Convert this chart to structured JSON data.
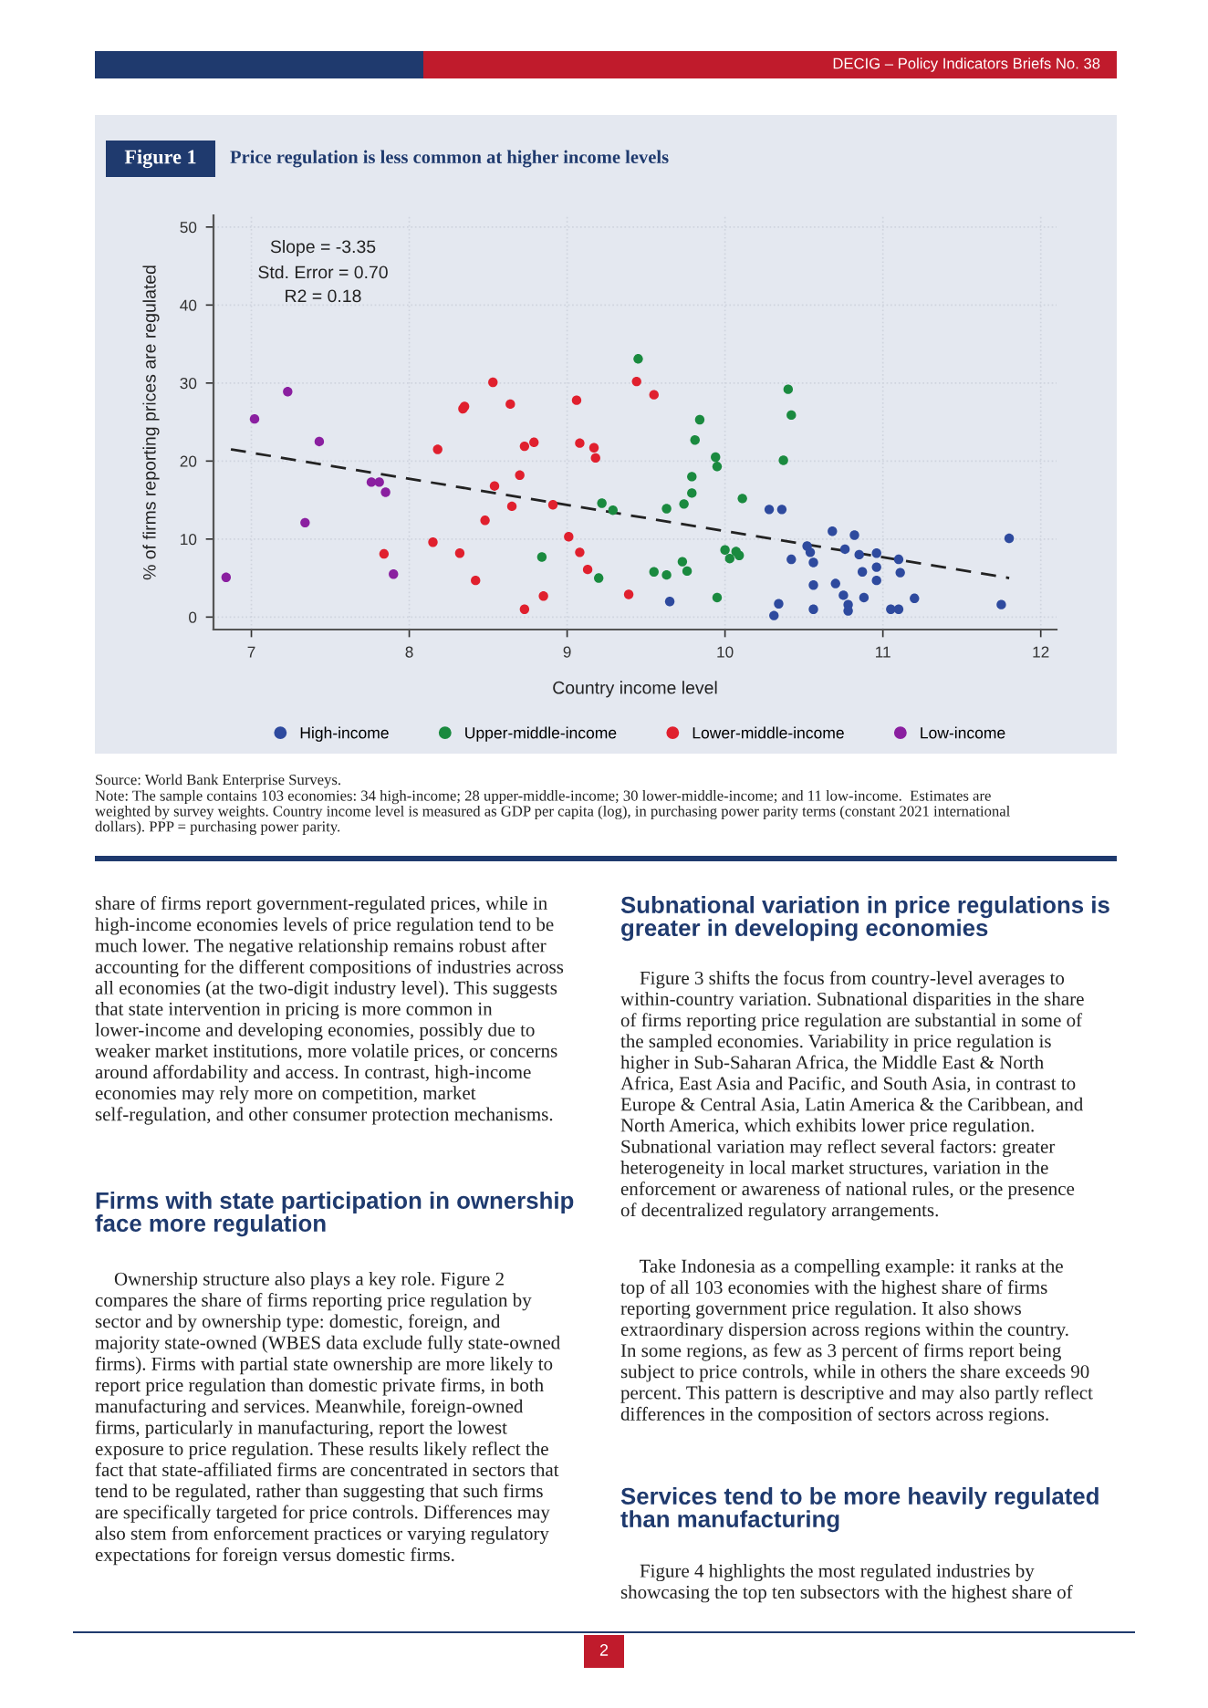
{
  "chart_data": {
    "type": "scatter",
    "title": "Price regulation is less common at higher income levels",
    "xlabel": "Country income level",
    "ylabel": "% of firms reporting prices are regulated",
    "xlim": [
      6.76,
      12.1
    ],
    "xticks": [
      7,
      8,
      9,
      10,
      11,
      12
    ],
    "ylim": [
      -1.6,
      51.5
    ],
    "yticks": [
      0,
      10,
      20,
      30,
      40,
      50
    ],
    "grid": true,
    "legend": "bottom",
    "marker": "circle",
    "series": [
      {
        "name": "High-income",
        "color": "#2e4a9e",
        "x": [
          9.65,
          10.28,
          10.36,
          10.31,
          10.34,
          10.42,
          10.52,
          10.54,
          10.56,
          10.56,
          10.56,
          10.68,
          10.7,
          10.75,
          10.76,
          10.78,
          10.78,
          10.82,
          10.85,
          10.87,
          10.88,
          10.96,
          10.96,
          10.96,
          11.05,
          11.1,
          11.1,
          11.11,
          11.2,
          11.75,
          11.8
        ],
        "values": [
          2.0,
          13.8,
          13.8,
          0.2,
          1.7,
          7.4,
          9.1,
          8.3,
          7.0,
          4.1,
          1.0,
          11.0,
          4.3,
          2.8,
          8.7,
          1.6,
          0.8,
          10.5,
          8.0,
          5.8,
          2.5,
          8.2,
          6.4,
          4.7,
          1.0,
          1.0,
          7.4,
          5.7,
          2.4,
          1.6,
          10.1
        ]
      },
      {
        "name": "Upper-middle-income",
        "color": "#1a8a3f",
        "x": [
          8.84,
          9.2,
          9.22,
          9.29,
          9.45,
          9.55,
          9.63,
          9.63,
          9.73,
          9.74,
          9.76,
          9.79,
          9.79,
          9.81,
          9.84,
          9.94,
          9.95,
          9.95,
          10.0,
          10.03,
          10.07,
          10.09,
          10.11,
          10.37,
          10.4,
          10.42
        ],
        "values": [
          7.7,
          5.0,
          14.6,
          13.7,
          33.1,
          5.8,
          5.4,
          13.9,
          7.1,
          14.5,
          5.9,
          15.9,
          18.0,
          22.7,
          25.3,
          20.5,
          19.3,
          2.5,
          8.6,
          7.5,
          8.4,
          7.9,
          15.2,
          20.1,
          29.2,
          25.9
        ]
      },
      {
        "name": "Lower-middle-income",
        "color": "#e0202e",
        "x": [
          7.84,
          8.15,
          8.18,
          8.32,
          8.34,
          8.35,
          8.42,
          8.48,
          8.53,
          8.54,
          8.64,
          8.65,
          8.7,
          8.73,
          8.73,
          8.79,
          8.85,
          8.91,
          9.01,
          9.06,
          9.08,
          9.08,
          9.13,
          9.17,
          9.18,
          9.39,
          9.44,
          9.55
        ],
        "values": [
          8.1,
          9.6,
          21.5,
          8.2,
          26.7,
          27.0,
          4.7,
          12.4,
          30.1,
          16.8,
          27.3,
          14.2,
          18.2,
          21.9,
          1.0,
          22.4,
          2.7,
          14.4,
          10.3,
          27.8,
          22.3,
          8.3,
          6.1,
          21.7,
          20.4,
          2.9,
          30.2,
          28.5
        ]
      },
      {
        "name": "Low-income",
        "color": "#8a1fa0",
        "x": [
          6.84,
          7.02,
          7.23,
          7.34,
          7.43,
          7.76,
          7.81,
          7.85,
          7.9
        ],
        "values": [
          5.1,
          25.4,
          28.9,
          12.1,
          22.5,
          17.3,
          17.3,
          16.0,
          5.5
        ]
      },
      {
        "type": "line",
        "color": "#222222",
        "line_style": "dashed",
        "marker": "none",
        "x": [
          6.87,
          11.8
        ],
        "values": [
          21.5,
          5.0
        ]
      }
    ],
    "annotations": [
      "DECIG – Policy Indicators Briefs No. 38",
      "Figure 1",
      "Slope = -3.35",
      "Std. Error = 0.70",
      "R2 = 0.18",
      "Source: World Bank Enterprise Surveys.",
      "Note: The sample contains 103 economies: 34 high-income; 28 upper-middle-income; 30 lower-middle-income; and 11 low-income.  Estimates are\nweighted by survey weights. Country income level is measured as GDP per capita (log), in purchasing power parity terms (constant 2021 international\ndollars). PPP = purchasing power parity.",
      "share of firms report government-regulated prices, while in\nhigh-income economies levels of price regulation tend to be\nmuch lower. The negative relationship remains robust after\naccounting for the different compositions of industries across\nall economies (at the two-digit industry level). This suggests\nthat state intervention in pricing is more common in\nlower-income and developing economies, possibly due to\nweaker market institutions, more volatile prices, or concerns\naround affordability and access. In contrast, high-income\neconomies may rely more on competition, market\nself-regulation, and other consumer protection mechanisms.",
      "Firms with state participation in ownership\nface more regulation",
      "    Ownership structure also plays a key role. Figure 2\ncompares the share of firms reporting price regulation by\nsector and by ownership type: domestic, foreign, and\nmajority state-owned (WBES data exclude fully state-owned\nfirms). Firms with partial state ownership are more likely to\nreport price regulation than domestic private firms, in both\nmanufacturing and services. Meanwhile, foreign-owned\nfirms, particularly in manufacturing, report the lowest\nexposure to price regulation. These results likely reflect the\nfact that state-affiliated firms are concentrated in sectors that\ntend to be regulated, rather than suggesting that such firms\nare specifically targeted for price controls. Differences may\nalso stem from enforcement practices or varying regulatory\nexpectations for foreign versus domestic firms.",
      "Subnational variation in price regulations is\ngreater in developing economies",
      "    Figure 3 shifts the focus from country-level averages to\nwithin-country variation. Subnational disparities in the share\nof firms reporting price regulation are substantial in some of\nthe sampled economies. Variability in price regulation is\nhigher in Sub-Saharan Africa, the Middle East & North\nAfrica, East Asia and Pacific, and South Asia, in contrast to\nEurope & Central Asia, Latin America & the Caribbean, and\nNorth America, which exhibits lower price regulation.\nSubnational variation may reflect several factors: greater\nheterogeneity in local market structures, variation in the\nenforcement or awareness of national rules, or the presence\nof decentralized regulatory arrangements.",
      "    Take Indonesia as a compelling example: it ranks at the\ntop of all 103 economies with the highest share of firms\nreporting government price regulation. It also shows\nextraordinary dispersion across regions within the country.\nIn some regions, as few as 3 percent of firms report being\nsubject to price controls, while in others the share exceeds 90\npercent. This pattern is descriptive and may also partly reflect\ndifferences in the composition of sectors across regions.",
      "Services tend to be more heavily regulated\nthan manufacturing",
      "    Figure 4 highlights the most regulated industries by\nshowcasing the top ten subsectors with the highest share of",
      "2"
    ]
  }
}
